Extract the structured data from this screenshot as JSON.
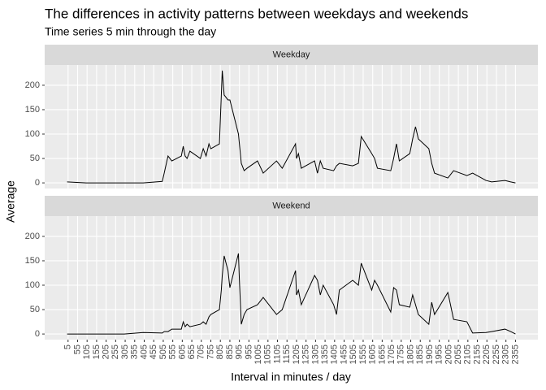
{
  "chart_data": {
    "type": "line",
    "title": "The differences in activity patterns between weekdays and weekends",
    "subtitle": "Time series 5 min through the day",
    "xlabel": "Interval in minutes / day",
    "ylabel": "Average",
    "color": "#000000",
    "grid": true,
    "x": [
      0,
      100,
      200,
      300,
      400,
      500,
      510,
      530,
      550,
      600,
      610,
      620,
      630,
      645,
      700,
      715,
      730,
      745,
      755,
      800,
      810,
      815,
      825,
      845,
      855,
      900,
      905,
      915,
      930,
      945,
      1000,
      1030,
      1100,
      1130,
      1200,
      1205,
      1215,
      1230,
      1300,
      1315,
      1330,
      1345,
      1400,
      1415,
      1430,
      1500,
      1530,
      1545,
      1600,
      1615,
      1630,
      1700,
      1715,
      1730,
      1745,
      1800,
      1815,
      1830,
      1845,
      1900,
      1915,
      1930,
      2000,
      2030,
      2100,
      2130,
      2200,
      2230,
      2300,
      2330,
      2355
    ],
    "xlim": [
      -117.75,
      2472.75
    ],
    "xticks": [
      5,
      55,
      105,
      155,
      205,
      255,
      305,
      355,
      405,
      455,
      505,
      555,
      605,
      655,
      705,
      755,
      805,
      855,
      905,
      955,
      1005,
      1055,
      1105,
      1155,
      1205,
      1255,
      1305,
      1355,
      1405,
      1455,
      1505,
      1555,
      1605,
      1655,
      1705,
      1755,
      1805,
      1855,
      1905,
      1955,
      2005,
      2055,
      2105,
      2155,
      2205,
      2255,
      2305,
      2355
    ],
    "ylim": [
      -11.5,
      241.5
    ],
    "yticks": [
      0,
      50,
      100,
      150,
      200
    ],
    "panels": [
      {
        "name": "Weekday",
        "values": [
          2,
          0,
          0,
          0,
          0,
          3,
          20,
          55,
          45,
          55,
          75,
          55,
          50,
          65,
          50,
          70,
          55,
          80,
          70,
          80,
          180,
          230,
          180,
          170,
          170,
          100,
          80,
          40,
          25,
          30,
          45,
          20,
          45,
          30,
          80,
          50,
          60,
          30,
          45,
          20,
          45,
          30,
          25,
          35,
          40,
          35,
          40,
          95,
          60,
          50,
          30,
          25,
          50,
          80,
          45,
          60,
          90,
          115,
          90,
          70,
          40,
          20,
          10,
          25,
          15,
          20,
          5,
          2,
          5,
          2,
          0
        ]
      },
      {
        "name": "Weekend",
        "values": [
          0,
          0,
          0,
          0,
          3,
          2,
          5,
          5,
          10,
          10,
          25,
          15,
          20,
          15,
          20,
          25,
          20,
          35,
          40,
          50,
          90,
          120,
          160,
          130,
          95,
          165,
          110,
          20,
          40,
          50,
          60,
          75,
          40,
          50,
          130,
          80,
          90,
          60,
          120,
          110,
          80,
          100,
          60,
          40,
          90,
          110,
          100,
          145,
          90,
          110,
          100,
          45,
          95,
          90,
          60,
          55,
          80,
          60,
          40,
          20,
          65,
          40,
          85,
          30,
          25,
          2,
          3,
          5,
          10,
          5,
          0
        ]
      }
    ]
  }
}
